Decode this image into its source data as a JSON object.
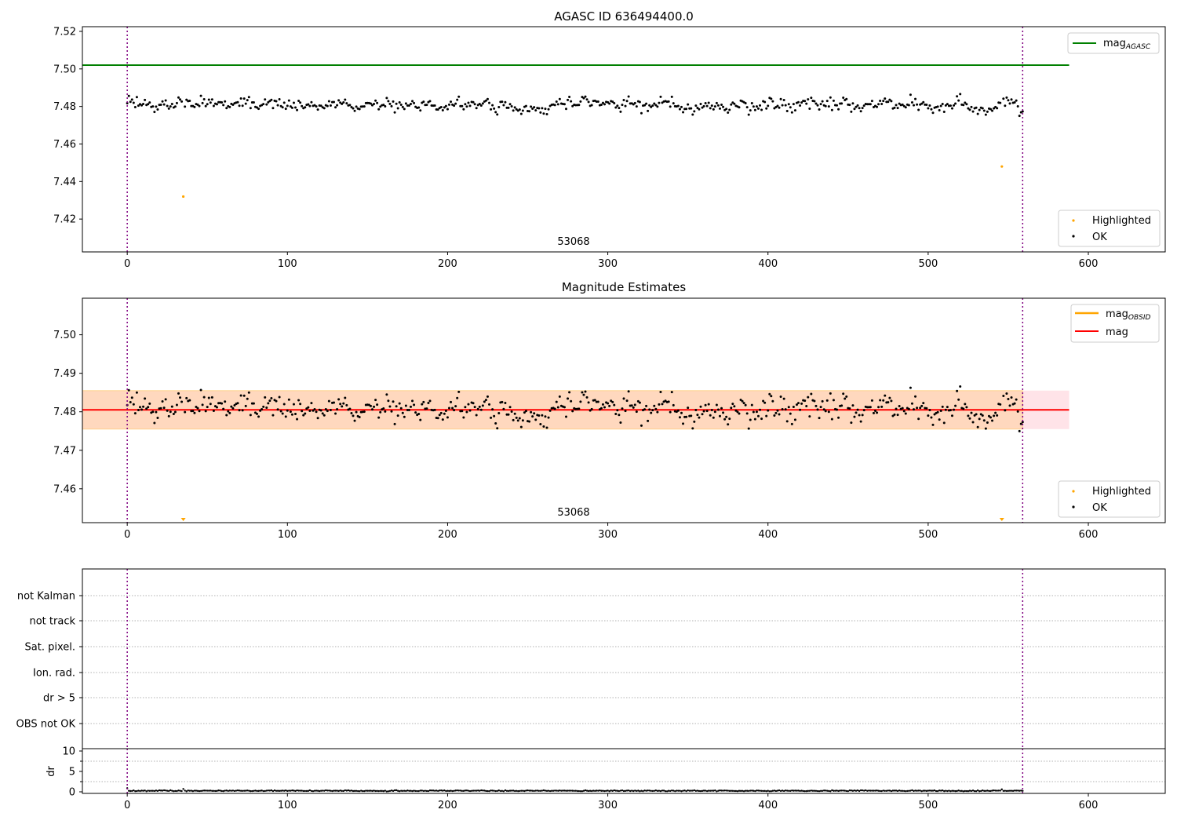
{
  "chart_data": [
    {
      "type": "scatter",
      "title": "AGASC ID 636494400.0",
      "xlim": [
        -28,
        648
      ],
      "ylim": [
        7.4025,
        7.5225
      ],
      "xticks": [
        0,
        100,
        200,
        300,
        400,
        500,
        600
      ],
      "yticks": [
        7.42,
        7.44,
        7.46,
        7.48,
        7.5,
        7.52
      ],
      "ytick_decimals": 2,
      "obsid_label": "53068",
      "obsid_label_x": 278,
      "vlines_x": [
        0,
        559
      ],
      "agasc_mag": 7.502,
      "agasc_span": [
        -28,
        588
      ],
      "highlighted": [
        [
          35,
          7.432
        ],
        [
          546,
          7.448
        ]
      ],
      "legend_lines": [
        {
          "label": "mag",
          "sub": "AGASC",
          "color": "#008000"
        }
      ],
      "legend_points": [
        {
          "label": "Highlighted",
          "color": "#ffa500"
        },
        {
          "label": "OK",
          "color": "#000000"
        }
      ]
    },
    {
      "type": "scatter",
      "title": "Magnitude Estimates",
      "xlim": [
        -28,
        648
      ],
      "ylim": [
        7.4512,
        7.5095
      ],
      "xticks": [
        0,
        100,
        200,
        300,
        400,
        500,
        600
      ],
      "yticks": [
        7.46,
        7.47,
        7.48,
        7.49,
        7.5
      ],
      "ytick_decimals": 2,
      "obsid_label": "53068",
      "obsid_label_x": 278,
      "vlines_x": [
        0,
        559
      ],
      "mag": 7.4805,
      "band": [
        7.4755,
        7.4855
      ],
      "band_x": [
        -28,
        588
      ],
      "obsid_band_x": [
        -28,
        559
      ],
      "offscale_markers_x": [
        35,
        546
      ],
      "legend_lines": [
        {
          "label": "mag",
          "sub": "OBSID",
          "color": "#ffa500"
        },
        {
          "label": "mag",
          "sub": "",
          "color": "#ff0000"
        }
      ],
      "legend_points": [
        {
          "label": "Highlighted",
          "color": "#ffa500"
        },
        {
          "label": "OK",
          "color": "#000000"
        }
      ]
    },
    {
      "type": "scatter",
      "categories": [
        "not Kalman",
        "not track",
        "Sat. pixel.",
        "Ion. rad.",
        "dr > 5",
        "OBS not OK"
      ],
      "vlines_x": [
        0,
        559
      ]
    },
    {
      "type": "scatter",
      "ylabel": "dr",
      "xlim": [
        -28,
        648
      ],
      "ylim": [
        0,
        10
      ],
      "yticks": [
        0,
        5,
        10
      ],
      "xticks": [
        0,
        100,
        200,
        300,
        400,
        500,
        600
      ],
      "vlines_x": [
        0,
        559
      ]
    }
  ],
  "series_model": {
    "n_points": 560,
    "mean": 7.4805,
    "std_estimate": 0.0045,
    "min": 7.467,
    "max": 7.492,
    "dr_typical": 0.25,
    "dr_max": 0.9
  }
}
